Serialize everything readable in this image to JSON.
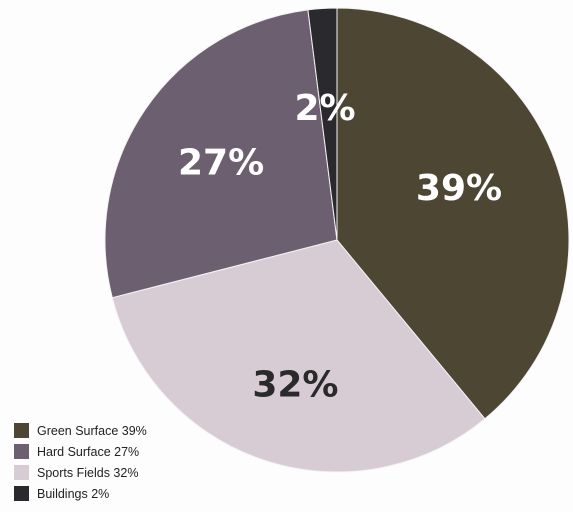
{
  "chart_data": {
    "type": "pie",
    "title": "",
    "start_angle_deg": 0,
    "direction": "clockwise",
    "slices": [
      {
        "label": "Green Surface 39%",
        "value": 39,
        "data_label": "39%",
        "color": "#4d4633",
        "label_color": "#ffffff"
      },
      {
        "label": "Sports Fields 32%",
        "value": 32,
        "data_label": "32%",
        "color": "#d7ccd3",
        "label_color": "#2a2a2a"
      },
      {
        "label": "Hard Surface 27%",
        "value": 27,
        "data_label": "27%",
        "color": "#6c6070",
        "label_color": "#ffffff"
      },
      {
        "label": "Buildings 2%",
        "value": 2,
        "data_label": "2%",
        "color": "#2a2a2e",
        "label_color": "#ffffff"
      }
    ],
    "legend": {
      "placement": "bottom-left",
      "entries": [
        {
          "text": "Green Surface 39%",
          "color": "#4d4633"
        },
        {
          "text": "Hard Surface 27%",
          "color": "#6c6070"
        },
        {
          "text": "Sports Fields 32%",
          "color": "#d7ccd3"
        },
        {
          "text": "Buildings 2%",
          "color": "#2a2a2e"
        }
      ]
    }
  }
}
